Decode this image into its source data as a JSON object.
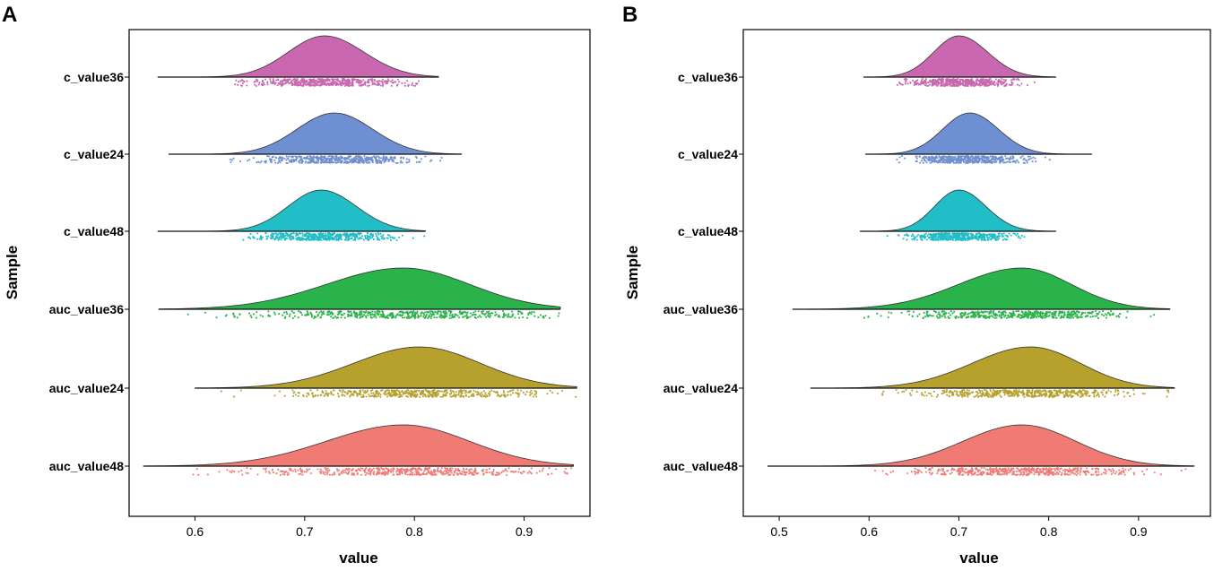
{
  "chart_data": [
    {
      "panel": "A",
      "type": "raincloud",
      "xlabel": "value",
      "ylabel": "Sample",
      "xlim": [
        0.54,
        0.96
      ],
      "xticks": [
        0.6,
        0.7,
        0.8,
        0.9
      ],
      "xtick_labels": [
        "0.6",
        "0.7",
        "0.8",
        "0.9"
      ],
      "grid": false,
      "series": [
        {
          "name": "c_value36",
          "color": "#C968B0",
          "range": [
            0.566,
            0.822
          ],
          "peak": 0.718,
          "sd_left": 0.033,
          "sd_right": 0.036,
          "points": 500
        },
        {
          "name": "c_value24",
          "color": "#6E8FD1",
          "range": [
            0.576,
            0.843
          ],
          "peak": 0.727,
          "sd_left": 0.034,
          "sd_right": 0.035,
          "points": 500
        },
        {
          "name": "c_value48",
          "color": "#21BEC8",
          "range": [
            0.566,
            0.81
          ],
          "peak": 0.715,
          "sd_left": 0.03,
          "sd_right": 0.032,
          "points": 500
        },
        {
          "name": "auc_value36",
          "color": "#2AB34A",
          "range": [
            0.567,
            0.933
          ],
          "peak": 0.79,
          "sd_left": 0.07,
          "sd_right": 0.06,
          "points": 500
        },
        {
          "name": "auc_value24",
          "color": "#B6A12D",
          "range": [
            0.6,
            0.948
          ],
          "peak": 0.805,
          "sd_left": 0.06,
          "sd_right": 0.055,
          "points": 500
        },
        {
          "name": "auc_value48",
          "color": "#F07A74",
          "range": [
            0.553,
            0.945
          ],
          "peak": 0.79,
          "sd_left": 0.07,
          "sd_right": 0.06,
          "points": 500
        }
      ]
    },
    {
      "panel": "B",
      "type": "raincloud",
      "xlabel": "value",
      "ylabel": "Sample",
      "xlim": [
        0.46,
        0.98
      ],
      "xticks": [
        0.5,
        0.6,
        0.7,
        0.8,
        0.9
      ],
      "xtick_labels": [
        "0.5",
        "0.6",
        "0.7",
        "0.8",
        "0.9"
      ],
      "grid": false,
      "series": [
        {
          "name": "c_value36",
          "color": "#C968B0",
          "range": [
            0.594,
            0.808
          ],
          "peak": 0.7,
          "sd_left": 0.028,
          "sd_right": 0.032,
          "points": 500
        },
        {
          "name": "c_value24",
          "color": "#6E8FD1",
          "range": [
            0.596,
            0.848
          ],
          "peak": 0.712,
          "sd_left": 0.03,
          "sd_right": 0.032,
          "points": 500
        },
        {
          "name": "c_value48",
          "color": "#21BEC8",
          "range": [
            0.59,
            0.808
          ],
          "peak": 0.7,
          "sd_left": 0.027,
          "sd_right": 0.03,
          "points": 500
        },
        {
          "name": "auc_value36",
          "color": "#2AB34A",
          "range": [
            0.515,
            0.935
          ],
          "peak": 0.77,
          "sd_left": 0.07,
          "sd_right": 0.055,
          "points": 500
        },
        {
          "name": "auc_value24",
          "color": "#B6A12D",
          "range": [
            0.535,
            0.94
          ],
          "peak": 0.78,
          "sd_left": 0.065,
          "sd_right": 0.055,
          "points": 500
        },
        {
          "name": "auc_value48",
          "color": "#F07A74",
          "range": [
            0.487,
            0.962
          ],
          "peak": 0.77,
          "sd_left": 0.065,
          "sd_right": 0.06,
          "points": 500
        }
      ]
    }
  ]
}
